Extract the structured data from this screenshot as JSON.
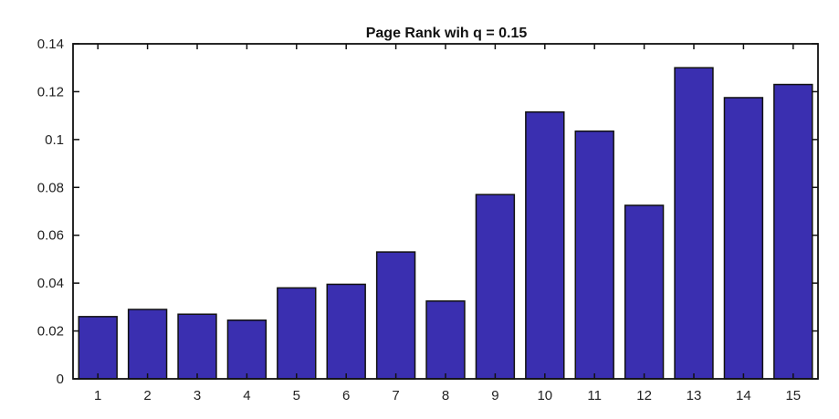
{
  "chart_data": {
    "type": "bar",
    "title": "Page Rank wih q = 0.15",
    "xlabel": "",
    "ylabel": "",
    "categories": [
      "1",
      "2",
      "3",
      "4",
      "5",
      "6",
      "7",
      "8",
      "9",
      "10",
      "11",
      "12",
      "13",
      "14",
      "15"
    ],
    "values": [
      0.026,
      0.029,
      0.027,
      0.0245,
      0.038,
      0.0395,
      0.053,
      0.0325,
      0.077,
      0.1115,
      0.1035,
      0.0725,
      0.13,
      0.1175,
      0.123
    ],
    "ylim": [
      0,
      0.14
    ],
    "yticks": [
      "0",
      "0.02",
      "0.04",
      "0.06",
      "0.08",
      "0.1",
      "0.12",
      "0.14"
    ],
    "bar_color": "#3a2fb0",
    "grid": false,
    "legend": "none"
  }
}
